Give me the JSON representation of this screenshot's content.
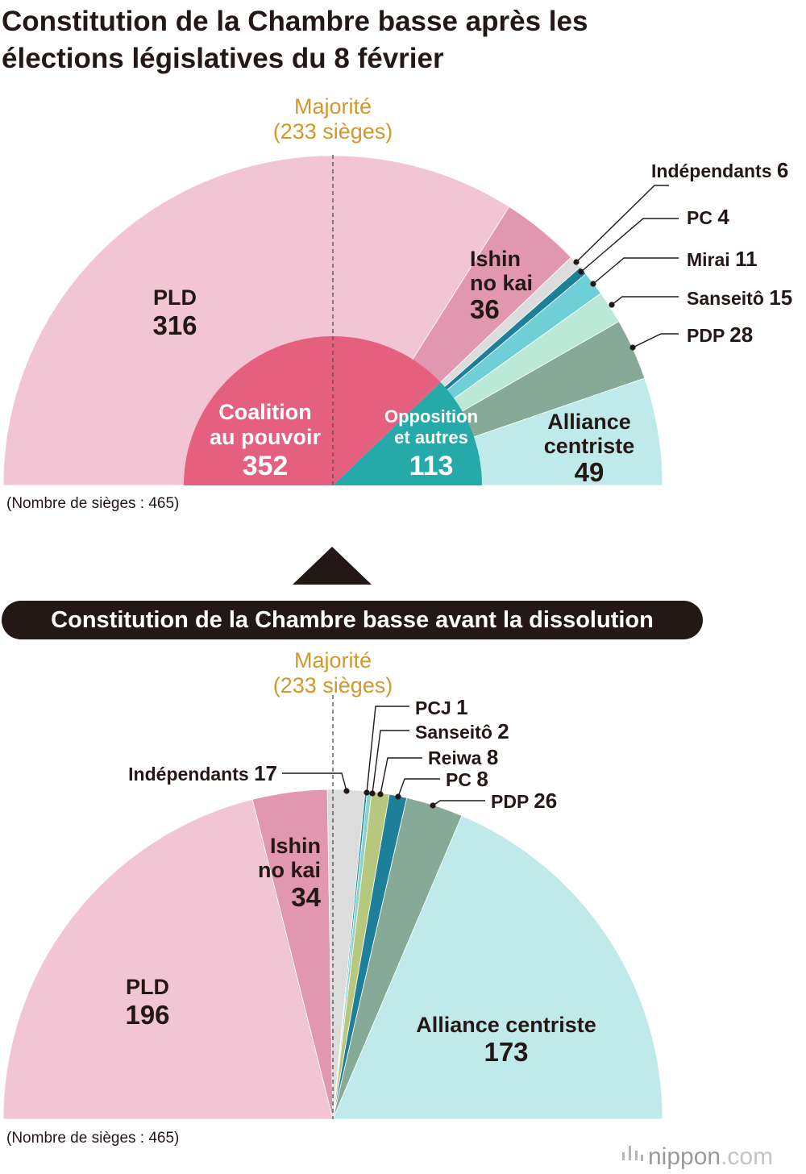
{
  "title": {
    "line1": "Constitution de la Chambre basse après les",
    "line2": "élections législatives du 8 février"
  },
  "chart_data": [
    {
      "type": "pie",
      "name": "after_election",
      "subtype": "hemicycle",
      "total_label": "(Nombre de sièges : 465)",
      "total": 465,
      "majority": {
        "line1": "Majorité",
        "line2": "(233 sièges)",
        "value": 233
      },
      "series": [
        {
          "key": "pld",
          "name": "PLD",
          "value": 316,
          "color": "#f2c5d4"
        },
        {
          "key": "ishin",
          "name": "Ishin no kai",
          "line1": "Ishin",
          "line2": "no kai",
          "value": 36,
          "color": "#e197b0"
        },
        {
          "key": "indep",
          "name": "Indépendants",
          "value": 6,
          "color": "#dcdcdc"
        },
        {
          "key": "pc",
          "name": "PC",
          "value": 4,
          "color": "#1d7f98"
        },
        {
          "key": "mirai",
          "name": "Mirai",
          "value": 11,
          "color": "#6ecfd6"
        },
        {
          "key": "sanseito",
          "name": "Sanseitô",
          "value": 15,
          "color": "#bce8d8"
        },
        {
          "key": "pdp",
          "name": "PDP",
          "value": 28,
          "color": "#86a998"
        },
        {
          "key": "alliance",
          "name": "Alliance centriste",
          "line1": "Alliance",
          "line2": "centriste",
          "value": 49,
          "color": "#bfeae9"
        }
      ],
      "inner_series": [
        {
          "key": "coalition",
          "line1": "Coalition",
          "line2": "au pouvoir",
          "value": 352,
          "color": "#e5607f"
        },
        {
          "key": "opposition",
          "line1": "Opposition",
          "line2": "et autres",
          "value": 113,
          "color": "#25aaa9"
        }
      ]
    },
    {
      "type": "pie",
      "name": "before_dissolution",
      "subtype": "hemicycle",
      "banner": "Constitution de la Chambre basse avant la dissolution",
      "total_label": "(Nombre de sièges : 465)",
      "total": 465,
      "majority": {
        "line1": "Majorité",
        "line2": "(233 sièges)",
        "value": 233
      },
      "series": [
        {
          "key": "pld",
          "name": "PLD",
          "value": 196,
          "color": "#f2c5d4"
        },
        {
          "key": "ishin",
          "name": "Ishin no kai",
          "line1": "Ishin",
          "line2": "no kai",
          "value": 34,
          "color": "#e197b0"
        },
        {
          "key": "indep",
          "name": "Indépendants",
          "value": 17,
          "color": "#dcdcdc"
        },
        {
          "key": "pcj",
          "name": "PCJ",
          "value": 1,
          "color": "#2a8fa3"
        },
        {
          "key": "sanseito",
          "name": "Sanseitô",
          "value": 2,
          "color": "#88d4cd"
        },
        {
          "key": "reiwa",
          "name": "Reiwa",
          "value": 8,
          "color": "#b7c87e"
        },
        {
          "key": "pc",
          "name": "PC",
          "value": 8,
          "color": "#1d7f98"
        },
        {
          "key": "pdp",
          "name": "PDP",
          "value": 26,
          "color": "#86a998"
        },
        {
          "key": "alliance",
          "name": "Alliance centriste",
          "value": 173,
          "color": "#bfeae9"
        }
      ]
    }
  ],
  "logo": {
    "name": "nippon",
    "tld": ".com"
  }
}
